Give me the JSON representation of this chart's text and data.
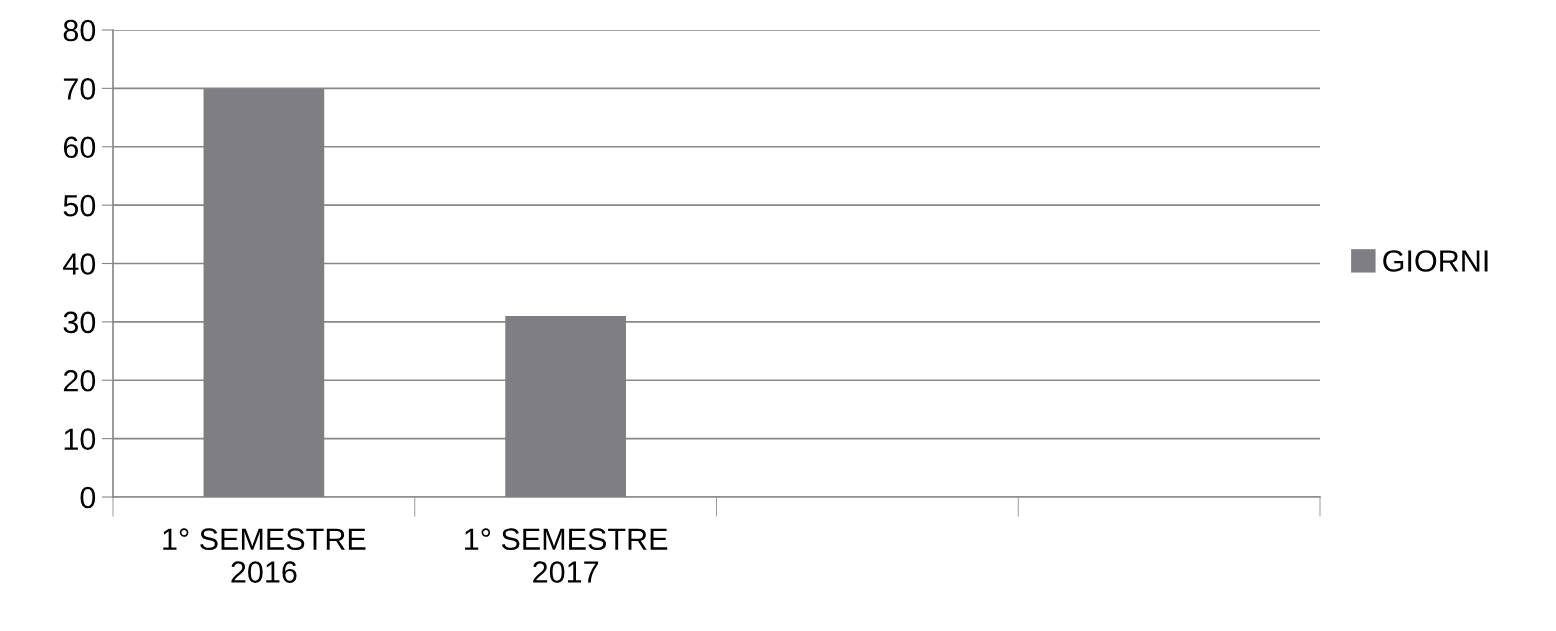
{
  "chart_data": {
    "type": "bar",
    "categories": [
      "1° SEMESTRE\n2016",
      "1° SEMESTRE\n2017",
      null,
      null
    ],
    "series": [
      {
        "name": "GIORNI",
        "color": "#7f7f83",
        "values": [
          70,
          31,
          null,
          null
        ]
      }
    ],
    "ylim": [
      0,
      80
    ],
    "yticks": [
      0,
      10,
      20,
      30,
      40,
      50,
      60,
      70,
      80
    ],
    "grid": "y",
    "legend": "right"
  }
}
